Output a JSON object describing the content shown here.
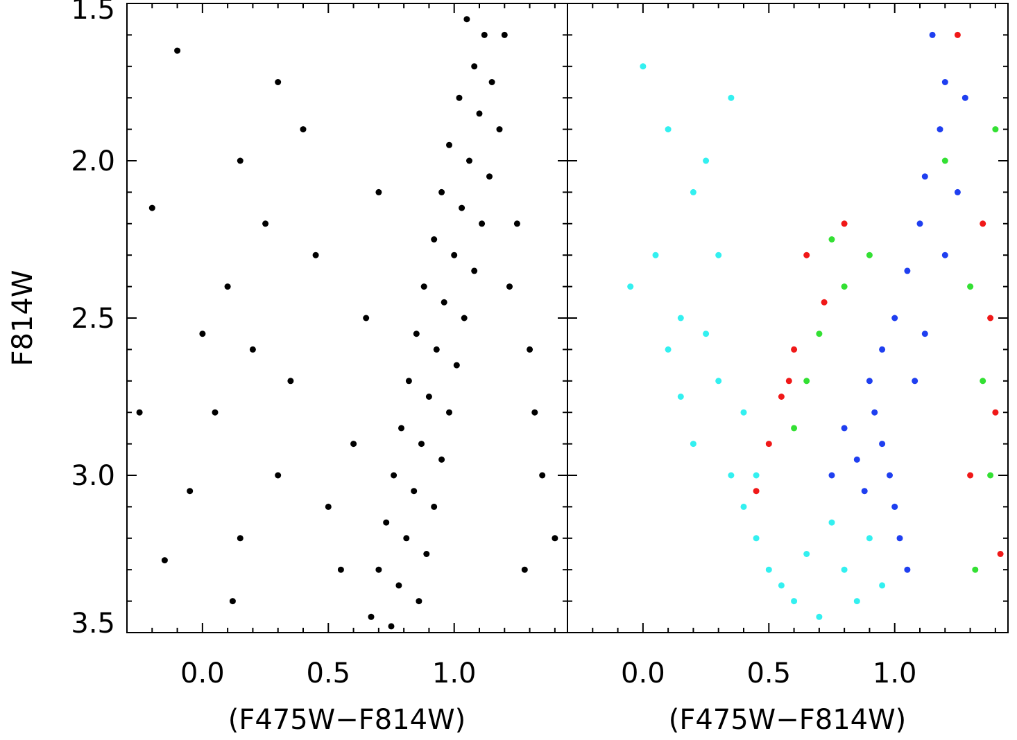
{
  "figure": {
    "ylabel": "F814W",
    "xlim": [
      -0.3,
      1.45
    ],
    "ylim": [
      3.5,
      1.5
    ],
    "x_ticks": [
      0.0,
      0.5,
      1.0
    ],
    "x_tick_labels": [
      "0.0",
      "0.5",
      "1.0"
    ],
    "y_ticks": [
      1.5,
      2.0,
      2.5,
      3.0,
      3.5
    ],
    "y_tick_labels": [
      "1.5",
      "2.0",
      "2.5",
      "3.0",
      "3.5"
    ]
  },
  "chart_data": [
    {
      "type": "scatter",
      "panel": "left",
      "xlabel": "(F475W−F814W)",
      "ylabel": "F814W",
      "xlim": [
        -0.3,
        1.45
      ],
      "ylim": [
        3.5,
        1.5
      ],
      "y_inverted": true,
      "grid": false,
      "series": [
        {
          "color": "#000000",
          "points": [
            [
              1.05,
              1.55
            ],
            [
              1.12,
              1.6
            ],
            [
              1.08,
              1.7
            ],
            [
              1.15,
              1.75
            ],
            [
              1.02,
              1.8
            ],
            [
              1.1,
              1.85
            ],
            [
              1.18,
              1.9
            ],
            [
              0.98,
              1.95
            ],
            [
              1.06,
              2.0
            ],
            [
              1.14,
              2.05
            ],
            [
              0.95,
              2.1
            ],
            [
              1.03,
              2.15
            ],
            [
              1.11,
              2.2
            ],
            [
              0.92,
              2.25
            ],
            [
              1.0,
              2.3
            ],
            [
              1.08,
              2.35
            ],
            [
              0.88,
              2.4
            ],
            [
              0.96,
              2.45
            ],
            [
              1.04,
              2.5
            ],
            [
              0.85,
              2.55
            ],
            [
              0.93,
              2.6
            ],
            [
              1.01,
              2.65
            ],
            [
              0.82,
              2.7
            ],
            [
              0.9,
              2.75
            ],
            [
              0.98,
              2.8
            ],
            [
              0.79,
              2.85
            ],
            [
              0.87,
              2.9
            ],
            [
              0.95,
              2.95
            ],
            [
              0.76,
              3.0
            ],
            [
              0.84,
              3.05
            ],
            [
              0.92,
              3.1
            ],
            [
              0.73,
              3.15
            ],
            [
              0.81,
              3.2
            ],
            [
              0.89,
              3.25
            ],
            [
              0.7,
              3.3
            ],
            [
              0.78,
              3.35
            ],
            [
              0.86,
              3.4
            ],
            [
              0.67,
              3.45
            ],
            [
              0.75,
              3.48
            ],
            [
              0.3,
              1.75
            ],
            [
              0.15,
              2.0
            ],
            [
              0.25,
              2.2
            ],
            [
              0.1,
              2.4
            ],
            [
              0.2,
              2.6
            ],
            [
              0.05,
              2.8
            ],
            [
              0.3,
              3.0
            ],
            [
              0.15,
              3.2
            ],
            [
              0.4,
              1.9
            ],
            [
              0.45,
              2.3
            ],
            [
              0.35,
              2.7
            ],
            [
              0.5,
              3.1
            ],
            [
              0.55,
              3.3
            ],
            [
              0.6,
              2.9
            ],
            [
              0.65,
              2.5
            ],
            [
              0.7,
              2.1
            ],
            [
              1.25,
              2.2
            ],
            [
              1.3,
              2.6
            ],
            [
              1.35,
              3.0
            ],
            [
              1.28,
              3.3
            ],
            [
              1.2,
              1.6
            ],
            [
              1.22,
              2.4
            ],
            [
              1.32,
              2.8
            ],
            [
              1.4,
              3.2
            ],
            [
              -0.2,
              2.15
            ],
            [
              -0.25,
              2.8
            ],
            [
              -0.15,
              3.27
            ],
            [
              -0.1,
              1.65
            ],
            [
              0.0,
              2.55
            ],
            [
              -0.05,
              3.05
            ],
            [
              0.12,
              3.4
            ]
          ]
        }
      ]
    },
    {
      "type": "scatter",
      "panel": "right",
      "xlabel": "(F475W−F814W)",
      "xlim": [
        -0.3,
        1.45
      ],
      "ylim": [
        3.5,
        1.5
      ],
      "y_inverted": true,
      "grid": false,
      "series": [
        {
          "color": "#33f0f0",
          "points": [
            [
              0.0,
              1.7
            ],
            [
              0.1,
              1.9
            ],
            [
              0.2,
              2.1
            ],
            [
              0.05,
              2.3
            ],
            [
              0.15,
              2.5
            ],
            [
              0.25,
              2.55
            ],
            [
              0.3,
              2.7
            ],
            [
              0.2,
              2.9
            ],
            [
              0.35,
              3.0
            ],
            [
              0.4,
              3.1
            ],
            [
              0.45,
              3.2
            ],
            [
              0.5,
              3.3
            ],
            [
              0.55,
              3.35
            ],
            [
              0.6,
              3.4
            ],
            [
              0.7,
              3.45
            ],
            [
              0.8,
              3.3
            ],
            [
              0.9,
              3.2
            ],
            [
              0.85,
              3.4
            ],
            [
              0.65,
              3.25
            ],
            [
              0.3,
              2.3
            ],
            [
              0.1,
              2.6
            ],
            [
              0.4,
              2.8
            ],
            [
              0.45,
              3.0
            ],
            [
              0.25,
              2.0
            ],
            [
              0.35,
              1.8
            ],
            [
              -0.05,
              2.4
            ],
            [
              0.15,
              2.75
            ],
            [
              1.0,
              3.1
            ],
            [
              0.75,
              3.15
            ],
            [
              0.95,
              3.35
            ]
          ]
        },
        {
          "color": "#1f3ff0",
          "points": [
            [
              1.15,
              1.6
            ],
            [
              1.2,
              1.75
            ],
            [
              1.18,
              1.9
            ],
            [
              1.12,
              2.05
            ],
            [
              1.1,
              2.2
            ],
            [
              1.05,
              2.35
            ],
            [
              1.0,
              2.5
            ],
            [
              0.95,
              2.6
            ],
            [
              0.9,
              2.7
            ],
            [
              0.92,
              2.8
            ],
            [
              0.95,
              2.9
            ],
            [
              0.98,
              3.0
            ],
            [
              1.0,
              3.1
            ],
            [
              1.02,
              3.2
            ],
            [
              0.88,
              3.05
            ],
            [
              0.85,
              2.95
            ],
            [
              1.08,
              2.7
            ],
            [
              1.12,
              2.55
            ],
            [
              1.2,
              2.3
            ],
            [
              1.25,
              2.1
            ],
            [
              1.28,
              1.8
            ],
            [
              0.8,
              2.85
            ],
            [
              0.75,
              3.0
            ],
            [
              1.05,
              3.3
            ]
          ]
        },
        {
          "color": "#f01818",
          "points": [
            [
              0.65,
              2.3
            ],
            [
              0.72,
              2.45
            ],
            [
              0.6,
              2.6
            ],
            [
              0.55,
              2.75
            ],
            [
              0.5,
              2.9
            ],
            [
              0.45,
              3.05
            ],
            [
              1.35,
              2.2
            ],
            [
              1.38,
              2.5
            ],
            [
              1.4,
              2.8
            ],
            [
              1.3,
              3.0
            ],
            [
              1.42,
              3.25
            ],
            [
              1.25,
              1.6
            ],
            [
              0.8,
              2.2
            ],
            [
              0.58,
              2.7
            ]
          ]
        },
        {
          "color": "#33e033",
          "points": [
            [
              0.75,
              2.25
            ],
            [
              0.8,
              2.4
            ],
            [
              0.7,
              2.55
            ],
            [
              0.65,
              2.7
            ],
            [
              0.6,
              2.85
            ],
            [
              1.3,
              2.4
            ],
            [
              1.35,
              2.7
            ],
            [
              1.38,
              3.0
            ],
            [
              1.32,
              3.3
            ],
            [
              1.4,
              1.9
            ],
            [
              1.2,
              2.0
            ],
            [
              0.9,
              2.3
            ]
          ]
        }
      ]
    }
  ]
}
